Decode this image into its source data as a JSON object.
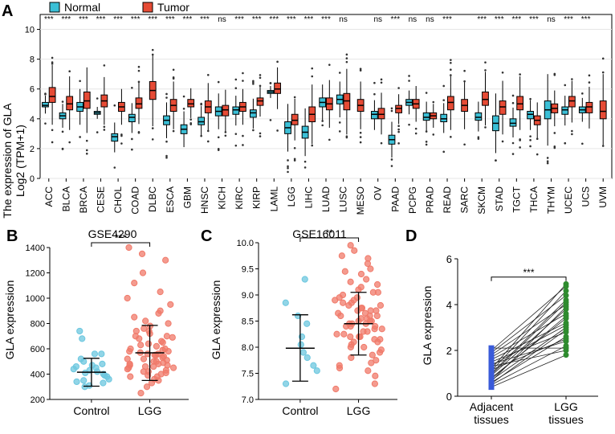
{
  "colors": {
    "normal": "#3bbfd6",
    "tumor": "#e64b35",
    "scatter_control": "#6cc7df",
    "scatter_lgg": "#f07a6a",
    "paired_adjacent": "#3a5bd9",
    "paired_lgg": "#2e8b2e"
  },
  "chart_data": [
    {
      "panel": "A",
      "type": "box",
      "ylabel": "The expression of GLA",
      "ylabel2": "Log2 (TPM+1)",
      "ylim": [
        0,
        11
      ],
      "yticks": [
        "0",
        "2",
        "4",
        "6",
        "8",
        "10"
      ],
      "legend": {
        "normal": "Normal",
        "tumor": "Tumor",
        "placement": "top-left"
      },
      "categories": [
        "ACC",
        "BLCA",
        "BRCA",
        "CESE",
        "CHOL",
        "COAD",
        "DLBC",
        "ESCA",
        "GBM",
        "HNSC",
        "KICH",
        "KIRC",
        "KIRP",
        "LAML",
        "LGG",
        "LIHC",
        "LUAD",
        "LUSC",
        "MESO",
        "OV",
        "PAAD",
        "PCPG",
        "PRAD",
        "READ",
        "SARC",
        "SKCM",
        "STAD",
        "TGCT",
        "THCA",
        "THYM",
        "UCEC",
        "UCS",
        "UVM"
      ],
      "significance": [
        "***",
        "***",
        "***",
        "***",
        "***",
        "***",
        "***",
        "***",
        "***",
        "***",
        "ns",
        "***",
        "***",
        "***",
        "***",
        "***",
        "***",
        "ns",
        "",
        "ns",
        "***",
        "ns",
        "ns",
        "***",
        "",
        "***",
        "***",
        "***",
        "***",
        "ns",
        "***",
        "***",
        ""
      ],
      "normal": [
        [
          4.8,
          5.1,
          4.9
        ],
        [
          4.0,
          4.4,
          4.2
        ],
        [
          4.5,
          5.1,
          4.8
        ],
        [
          4.3,
          4.5,
          4.4
        ],
        [
          2.5,
          3.0,
          2.8
        ],
        [
          3.8,
          4.3,
          4.1
        ],
        null,
        [
          3.6,
          4.2,
          3.9
        ],
        [
          3.0,
          3.6,
          3.3
        ],
        [
          3.6,
          4.1,
          3.8
        ],
        [
          4.2,
          4.8,
          4.5
        ],
        [
          4.3,
          4.8,
          4.6
        ],
        [
          4.1,
          4.6,
          4.4
        ],
        [
          5.7,
          5.9,
          5.8
        ],
        [
          3.0,
          3.8,
          3.4
        ],
        [
          2.7,
          3.5,
          3.1
        ],
        [
          4.8,
          5.4,
          5.1
        ],
        [
          5.0,
          5.6,
          5.3
        ],
        null,
        [
          4.0,
          4.5,
          4.3
        ],
        [
          2.3,
          2.9,
          2.6
        ],
        [
          4.9,
          5.3,
          5.1
        ],
        [
          3.9,
          4.4,
          4.1
        ],
        [
          3.8,
          4.3,
          4.0
        ],
        null,
        [
          3.9,
          4.4,
          4.1
        ],
        [
          3.2,
          4.2,
          3.7
        ],
        [
          3.5,
          4.0,
          3.7
        ],
        [
          4.0,
          4.5,
          4.3
        ],
        [
          4.0,
          5.2,
          4.6
        ],
        [
          4.3,
          4.8,
          4.6
        ],
        [
          4.4,
          4.8,
          4.6
        ],
        null
      ],
      "tumor": [
        [
          5.1,
          6.1,
          5.5
        ],
        [
          4.6,
          5.5,
          5.0
        ],
        [
          4.7,
          5.8,
          5.2
        ],
        [
          4.8,
          5.6,
          5.2
        ],
        [
          4.5,
          5.1,
          4.8
        ],
        [
          4.7,
          5.4,
          5.0
        ],
        [
          5.3,
          6.5,
          5.9
        ],
        [
          4.5,
          5.3,
          4.9
        ],
        [
          4.8,
          5.3,
          5.0
        ],
        [
          4.4,
          5.2,
          4.8
        ],
        [
          4.2,
          4.9,
          4.6
        ],
        [
          4.5,
          5.1,
          4.8
        ],
        [
          4.9,
          5.4,
          5.2
        ],
        [
          5.7,
          6.4,
          6.0
        ],
        [
          3.6,
          4.3,
          3.9
        ],
        [
          3.8,
          4.8,
          4.3
        ],
        [
          4.6,
          5.4,
          5.0
        ],
        [
          4.6,
          5.7,
          5.2
        ],
        [
          4.5,
          5.3,
          4.9
        ],
        [
          4.0,
          4.7,
          4.3
        ],
        [
          4.4,
          4.9,
          4.7
        ],
        [
          4.7,
          5.3,
          5.0
        ],
        [
          4.0,
          4.4,
          4.2
        ],
        [
          4.6,
          5.5,
          5.1
        ],
        [
          4.5,
          5.3,
          4.9
        ],
        [
          4.9,
          5.8,
          5.3
        ],
        [
          4.3,
          5.2,
          4.8
        ],
        [
          4.6,
          5.5,
          5.0
        ],
        [
          3.6,
          4.2,
          3.9
        ],
        [
          4.4,
          5.0,
          4.7
        ],
        [
          4.8,
          5.5,
          5.2
        ],
        [
          4.4,
          5.1,
          4.8
        ],
        [
          4.0,
          5.2,
          4.5
        ]
      ]
    },
    {
      "panel": "B",
      "type": "scatter",
      "title": "GSE4290",
      "ylabel": "GLA expression",
      "ylim": [
        200,
        1400
      ],
      "yticks": [
        "200",
        "400",
        "600",
        "800",
        "1000",
        "1200",
        "1400"
      ],
      "categories": [
        "Control",
        "LGG"
      ],
      "significance": "***",
      "control": [
        420,
        380,
        350,
        460,
        520,
        560,
        740,
        300,
        330,
        410,
        450,
        390,
        360,
        470,
        500,
        430,
        310,
        560,
        680,
        400,
        340,
        480,
        440
      ],
      "lgg": [
        250,
        300,
        330,
        360,
        380,
        400,
        420,
        430,
        440,
        450,
        460,
        470,
        480,
        490,
        500,
        510,
        520,
        530,
        540,
        550,
        560,
        570,
        580,
        590,
        600,
        620,
        640,
        660,
        680,
        700,
        720,
        740,
        760,
        780,
        800,
        820,
        850,
        880,
        900,
        950,
        1000,
        1050,
        1120,
        1200,
        1300,
        1350,
        1400,
        390,
        410,
        460,
        520,
        580,
        630,
        690,
        740,
        480,
        350,
        420,
        600,
        500,
        560,
        450,
        380,
        700,
        650,
        550,
        470
      ],
      "control_stats": {
        "mean": 415,
        "sd_low": 305,
        "sd_high": 525
      },
      "lgg_stats": {
        "mean": 568,
        "sd_low": 350,
        "sd_high": 785
      }
    },
    {
      "panel": "C",
      "type": "scatter",
      "title": "GSE16011",
      "ylabel": "GLA expression",
      "ylim": [
        7.0,
        10.0
      ],
      "yticks": [
        "7.0",
        "7.5",
        "8.0",
        "8.5",
        "9.0",
        "9.5",
        "10.0"
      ],
      "categories": [
        "Control",
        "LGG"
      ],
      "significance": "**",
      "control": [
        7.3,
        7.55,
        7.65,
        7.8,
        7.9,
        8.05,
        8.2,
        8.45,
        8.6,
        8.85,
        9.3
      ],
      "lgg": [
        7.2,
        7.3,
        7.45,
        7.55,
        7.6,
        7.7,
        7.75,
        7.8,
        7.85,
        7.9,
        7.95,
        8.0,
        8.05,
        8.1,
        8.15,
        8.2,
        8.25,
        8.3,
        8.35,
        8.4,
        8.45,
        8.5,
        8.55,
        8.6,
        8.65,
        8.7,
        8.75,
        8.8,
        8.85,
        8.9,
        8.95,
        9.0,
        9.05,
        9.1,
        9.2,
        9.3,
        9.4,
        9.5,
        9.6,
        9.7,
        9.75,
        9.85,
        9.95,
        8.2,
        8.4,
        8.6,
        8.8,
        8.3,
        8.5,
        8.7,
        8.1,
        8.9,
        8.45,
        8.55,
        8.25,
        8.65,
        8.35,
        8.75,
        9.15,
        8.0,
        8.15,
        8.5,
        8.4,
        8.6,
        9.25,
        7.65,
        8.85,
        8.95,
        9.05,
        9.45,
        8.2,
        8.45,
        8.7
      ],
      "control_stats": {
        "mean": 7.98,
        "sd_low": 7.35,
        "sd_high": 8.62
      },
      "lgg_stats": {
        "mean": 8.45,
        "sd_low": 7.85,
        "sd_high": 9.05
      }
    },
    {
      "panel": "D",
      "type": "paired",
      "ylabel": "GLA expression",
      "ylim": [
        0,
        6
      ],
      "yticks": [
        "0",
        "2",
        "4",
        "6"
      ],
      "categories": [
        "Adjacent\ntissues",
        "LGG\ntissues"
      ],
      "cat_line1": [
        "Adjacent",
        "LGG"
      ],
      "cat_line2": [
        "tissues",
        "tissues"
      ],
      "significance": "***",
      "adjacent": [
        0.4,
        0.5,
        0.6,
        0.7,
        0.8,
        0.9,
        1.0,
        1.1,
        1.2,
        1.3,
        1.4,
        1.5,
        1.6,
        1.7,
        1.8,
        1.9,
        2.0,
        2.1,
        0.55,
        0.75,
        0.95,
        1.15,
        1.35,
        0.65
      ],
      "lgg": [
        1.8,
        2.2,
        2.6,
        3.0,
        3.4,
        3.8,
        4.2,
        4.6,
        4.9,
        2.0,
        2.4,
        2.8,
        3.2,
        3.6,
        4.0,
        4.4,
        4.8,
        2.1,
        2.9,
        3.5,
        4.1,
        2.5,
        3.1,
        3.9
      ]
    }
  ],
  "panel_labels": [
    "A",
    "B",
    "C",
    "D"
  ]
}
